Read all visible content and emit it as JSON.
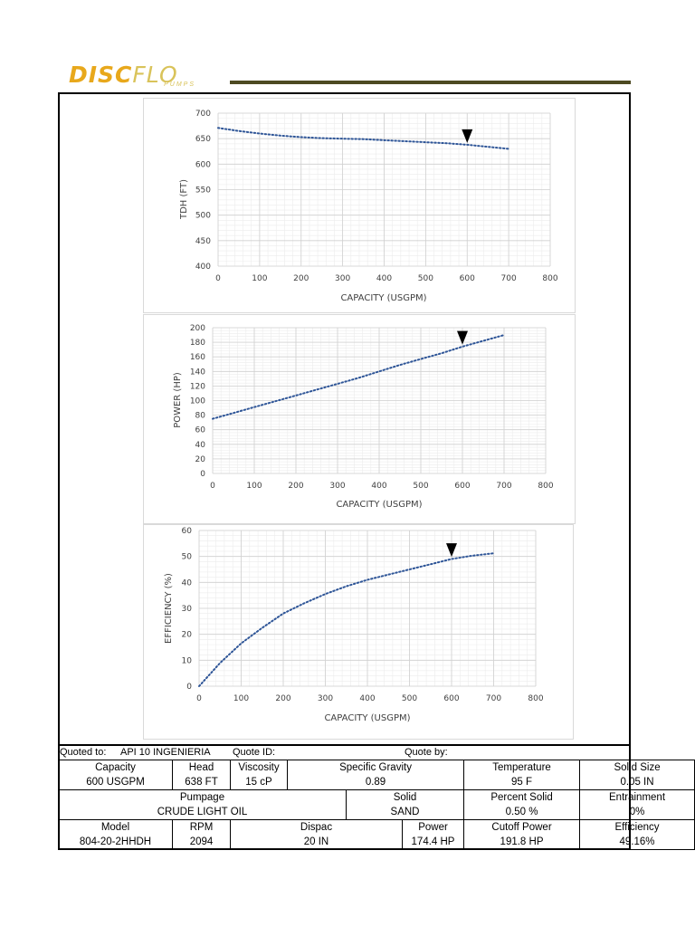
{
  "header": {
    "logo_text_a": "DISC",
    "logo_text_b": "FLO",
    "logo_sub": "PUMPS"
  },
  "chart_data": [
    {
      "type": "line",
      "xlabel": "CAPACITY (USGPM)",
      "ylabel": "TDH (FT)",
      "xlim": [
        0,
        800
      ],
      "ylim": [
        400,
        700
      ],
      "xticks": [
        "0",
        "100",
        "200",
        "300",
        "400",
        "500",
        "600",
        "700",
        "800"
      ],
      "yticks": [
        "400",
        "450",
        "500",
        "550",
        "600",
        "650",
        "700"
      ],
      "grid": true,
      "series": [
        {
          "x": [
            0,
            50,
            100,
            150,
            200,
            250,
            300,
            350,
            400,
            450,
            500,
            550,
            600,
            650,
            700
          ],
          "values": [
            671,
            665,
            660,
            656,
            653,
            651,
            650,
            649,
            647,
            645,
            643,
            641,
            638,
            634,
            630
          ]
        }
      ],
      "marker": {
        "x": 600,
        "y": 638
      }
    },
    {
      "type": "line",
      "xlabel": "CAPACITY (USGPM)",
      "ylabel": "POWER (HP)",
      "xlim": [
        0,
        800
      ],
      "ylim": [
        0,
        200
      ],
      "xticks": [
        "0",
        "100",
        "200",
        "300",
        "400",
        "500",
        "600",
        "700",
        "800"
      ],
      "yticks": [
        "0",
        "20",
        "40",
        "60",
        "80",
        "100",
        "120",
        "140",
        "160",
        "180",
        "200"
      ],
      "grid": true,
      "series": [
        {
          "x": [
            0,
            50,
            100,
            150,
            200,
            250,
            300,
            350,
            400,
            450,
            500,
            550,
            600,
            650,
            700
          ],
          "values": [
            75,
            83,
            91,
            99,
            107,
            115,
            123,
            131,
            140,
            149,
            157,
            165,
            174,
            182,
            190
          ]
        }
      ],
      "marker": {
        "x": 600,
        "y": 174.4
      }
    },
    {
      "type": "line",
      "xlabel": "CAPACITY (USGPM)",
      "ylabel": "EFFICIENCY (%)",
      "xlim": [
        0,
        800
      ],
      "ylim": [
        0,
        60
      ],
      "xticks": [
        "0",
        "100",
        "200",
        "300",
        "400",
        "500",
        "600",
        "700",
        "800"
      ],
      "yticks": [
        "0",
        "10",
        "20",
        "30",
        "40",
        "50",
        "60"
      ],
      "grid": true,
      "series": [
        {
          "x": [
            0,
            50,
            100,
            150,
            200,
            250,
            300,
            350,
            400,
            450,
            500,
            550,
            600,
            650,
            700
          ],
          "values": [
            0,
            9,
            16.5,
            22.5,
            28,
            32,
            35.5,
            38.5,
            41,
            43,
            45,
            47,
            49,
            50.3,
            51.2
          ]
        }
      ],
      "marker": {
        "x": 600,
        "y": 49.16
      }
    }
  ],
  "quote": {
    "quoted_to_label": "Quoted to:",
    "quoted_to": "API 10 INGENIERIA",
    "quote_id_label": "Quote ID:",
    "quote_by_label": "Quote by:"
  },
  "table": {
    "capacity_label": "Capacity",
    "capacity": "600 USGPM",
    "head_label": "Head",
    "head": "638 FT",
    "viscosity_label": "Viscosity",
    "viscosity": "15 cP",
    "sg_label": "Specific Gravity",
    "sg": "0.89",
    "temp_label": "Temperature",
    "temp": "95 F",
    "solid_size_label": "Solid Size",
    "solid_size": "0.05 IN",
    "pumpage_label": "Pumpage",
    "pumpage": "CRUDE LIGHT OIL",
    "solid_label": "Solid",
    "solid": "SAND",
    "pct_solid_label": "Percent Solid",
    "pct_solid": "0.50 %",
    "entrainment_label": "Entrainment",
    "entrainment": "0%",
    "model_label": "Model",
    "model": "804-20-2HHDH",
    "rpm_label": "RPM",
    "rpm": "2094",
    "dispac_label": "Dispac",
    "dispac": "20 IN",
    "power_label": "Power",
    "power": "174.4 HP",
    "cutoff_label": "Cutoff Power",
    "cutoff": "191.8 HP",
    "efficiency_label": "Efficiency",
    "efficiency": "49.16%"
  }
}
